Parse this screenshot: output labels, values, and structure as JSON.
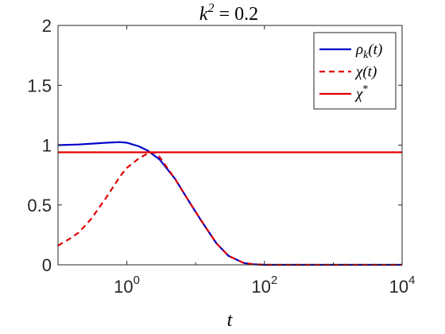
{
  "chart_data": {
    "type": "line",
    "title": "k² = 0.2",
    "title_parts": {
      "base": "k",
      "sup": "2",
      "rest": " = 0.2"
    },
    "xlabel": "t",
    "ylabel": "",
    "xscale": "log",
    "xlim": [
      0.1,
      10000
    ],
    "ylim": [
      0,
      2
    ],
    "x_ticks": [
      {
        "value": 1,
        "base": "10",
        "exp": "0"
      },
      {
        "value": 100,
        "base": "10",
        "exp": "2"
      },
      {
        "value": 10000,
        "base": "10",
        "exp": "4"
      }
    ],
    "y_ticks": [
      {
        "value": 0,
        "label": "0"
      },
      {
        "value": 0.5,
        "label": "0.5"
      },
      {
        "value": 1,
        "label": "1"
      },
      {
        "value": 1.5,
        "label": "1.5"
      },
      {
        "value": 2,
        "label": "2"
      }
    ],
    "grid": false,
    "legend_position": "top-right",
    "series": [
      {
        "name": "ρk(t)",
        "label_parts": {
          "base": "ρ",
          "sub": "k",
          "rest": "(t)"
        },
        "color": "#0000cc",
        "style": "solid",
        "x": [
          0.1,
          0.2,
          0.5,
          0.8,
          1.0,
          1.5,
          2.0,
          3.0,
          5.0,
          8.0,
          12,
          20,
          30,
          50,
          70,
          100,
          300,
          1000,
          10000
        ],
        "y": [
          1.0,
          1.005,
          1.02,
          1.025,
          1.02,
          0.99,
          0.955,
          0.88,
          0.72,
          0.53,
          0.37,
          0.18,
          0.075,
          0.015,
          0.004,
          0.0,
          0.0,
          0.0,
          0.0
        ]
      },
      {
        "name": "χ(t)",
        "label_parts": {
          "base": "χ",
          "sub": "",
          "rest": "(t)"
        },
        "color": "#e00000",
        "style": "dashed",
        "x": [
          0.1,
          0.15,
          0.2,
          0.3,
          0.5,
          0.8,
          1.0,
          1.5,
          2.0,
          2.5,
          3.0,
          5.0,
          8.0,
          12,
          20,
          30,
          50,
          70,
          100,
          300,
          1000,
          10000
        ],
        "y": [
          0.16,
          0.22,
          0.27,
          0.38,
          0.56,
          0.74,
          0.81,
          0.89,
          0.93,
          0.94,
          0.9,
          0.72,
          0.53,
          0.37,
          0.18,
          0.075,
          0.015,
          0.004,
          0.0,
          0.0,
          0.0,
          0.0
        ]
      },
      {
        "name": "χ*",
        "label_parts": {
          "base": "χ",
          "sup": "*",
          "rest": ""
        },
        "color": "#e00000",
        "style": "solid",
        "x": [
          0.1,
          10000
        ],
        "y": [
          0.94,
          0.94
        ]
      }
    ]
  }
}
